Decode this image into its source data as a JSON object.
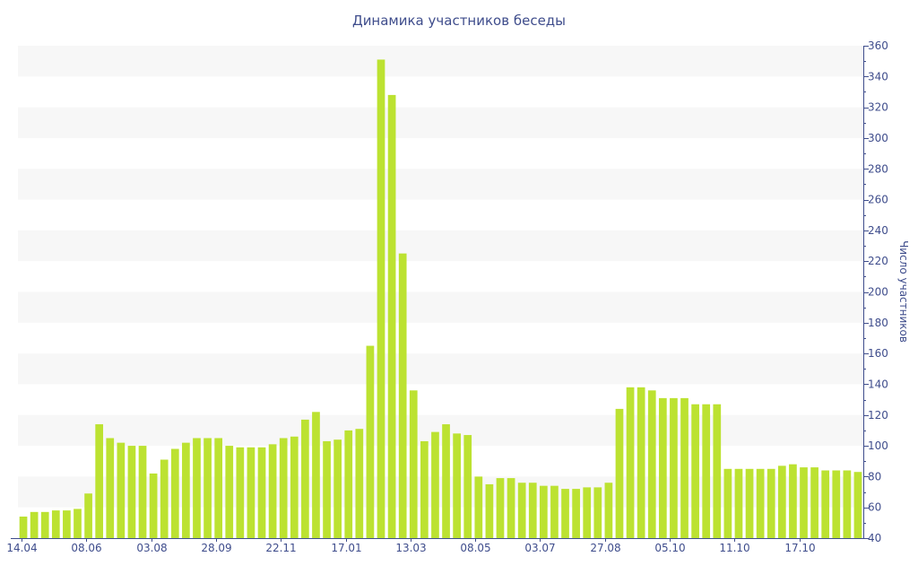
{
  "chart_data": {
    "type": "bar",
    "title": "Динамика участников беседы",
    "xlabel": "",
    "ylabel": "Число участников",
    "ylim": [
      40,
      360
    ],
    "y_ticks": [
      40,
      60,
      80,
      100,
      120,
      140,
      160,
      180,
      200,
      220,
      240,
      260,
      280,
      300,
      320,
      340,
      360
    ],
    "y_axis_position": "right",
    "x_tick_labels": [
      "14.04",
      "08.06",
      "03.08",
      "28.09",
      "22.11",
      "17.01",
      "13.03",
      "08.05",
      "03.07",
      "27.08",
      "05.10",
      "11.10",
      "17.10"
    ],
    "values": [
      54,
      57,
      57,
      58,
      58,
      59,
      69,
      114,
      105,
      102,
      100,
      100,
      82,
      91,
      98,
      102,
      105,
      105,
      105,
      100,
      99,
      99,
      99,
      101,
      105,
      106,
      117,
      122,
      103,
      104,
      110,
      111,
      165,
      351,
      328,
      225,
      136,
      103,
      109,
      114,
      108,
      107,
      80,
      75,
      79,
      79,
      76,
      76,
      74,
      74,
      72,
      72,
      73,
      73,
      76,
      124,
      138,
      138,
      136,
      131,
      131,
      131,
      127,
      127,
      127,
      85,
      85,
      85,
      85,
      85,
      87,
      88,
      86,
      86,
      84,
      84,
      84,
      83
    ],
    "colors": {
      "bar": "#bce231",
      "axis": "#3f4d8c",
      "band": "#f7f7f7"
    },
    "grid": "alternating bands",
    "legend": "none"
  }
}
